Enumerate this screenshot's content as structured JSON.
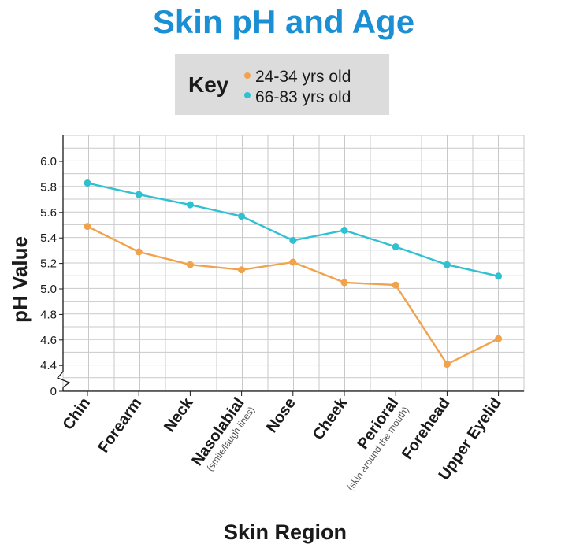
{
  "colors": {
    "title": "#1b8fd3",
    "series_young": "#f0a24d",
    "series_old": "#2fc1d1",
    "grid": "#c9c9c9",
    "key_bg": "#dcdcdc",
    "text": "#1a1a1a",
    "sub_text": "#555555"
  },
  "chart_data": {
    "type": "line",
    "title": "Skin pH and Age",
    "xlabel": "Skin Region",
    "ylabel": "pH Value",
    "legend_title": "Key",
    "legend_position": "top-center",
    "grid": true,
    "categories": [
      "Chin",
      "Forearm",
      "Neck",
      "Nasolabial",
      "Nose",
      "Cheek",
      "Perioral",
      "Forehead",
      "Upper Eyelid"
    ],
    "category_notes": [
      "",
      "",
      "",
      "(smile/laugh lines)",
      "",
      "",
      "(skin around the mouth)",
      "",
      ""
    ],
    "y_ticks": [
      "6.0",
      "5.8",
      "5.6",
      "5.4",
      "5.2",
      "5.0",
      "4.8",
      "4.6",
      "4.4",
      "0"
    ],
    "ylim": [
      4.4,
      6.0
    ],
    "y_axis_break": true,
    "series": [
      {
        "name": "24-34 yrs old",
        "values": [
          5.49,
          5.29,
          5.19,
          5.15,
          5.21,
          5.05,
          5.03,
          4.41,
          4.61
        ]
      },
      {
        "name": "66-83 yrs old",
        "values": [
          5.83,
          5.74,
          5.66,
          5.57,
          5.38,
          5.46,
          5.33,
          5.19,
          5.1
        ]
      }
    ]
  }
}
